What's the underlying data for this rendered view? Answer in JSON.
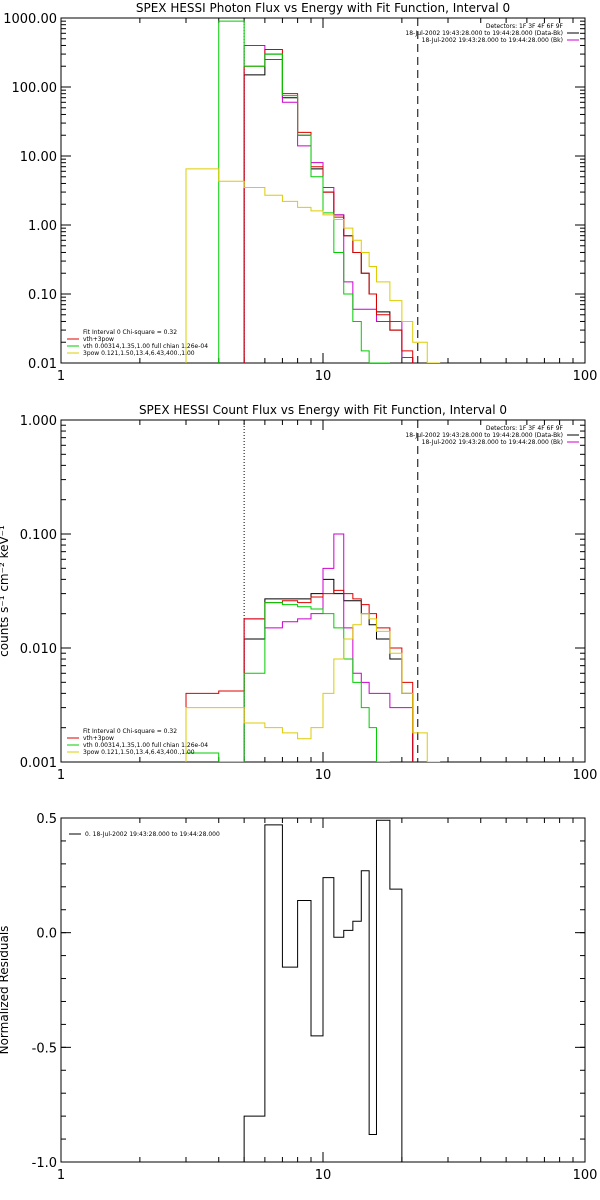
{
  "chart_data": [
    {
      "type": "line",
      "title": "SPEX HESSI Photon Flux vs Energy with Fit Function, Interval 0",
      "ylabel": "",
      "xlabel": "",
      "x_scale": "log",
      "y_scale": "log",
      "xlim": [
        1,
        100
      ],
      "ylim": [
        0.01,
        1000
      ],
      "x_tick_labels": [
        "1",
        "10",
        "100"
      ],
      "y_tick_labels": [
        "0.01",
        "0.10",
        "1.00",
        "10.00",
        "100.00",
        "1000.00"
      ],
      "vlines": [
        {
          "x": 5.0,
          "style": "dotted"
        },
        {
          "x": 23.0,
          "style": "dashed"
        }
      ],
      "legend_tr": [
        "Detectors: 1F 3F 4F 6F 9F",
        "18-Jul-2002 19:43:28.000 to 19:44:28.000 (Data-Bk)",
        "18-Jul-2002 19:43:28.000 to 19:44:28.000 (Bk)"
      ],
      "legend_tr_colors": [
        "",
        "#000000",
        "#cc00cc"
      ],
      "legend_bl": [
        "Fit Interval 0   Chi-square = 0.32",
        "vth+3pow",
        "vth 0.00314,1.35,1.00  full chian 1.26e-04",
        "3pow 0.121,1.50,13.4,6.43,400.,1.00"
      ],
      "legend_bl_colors": [
        "",
        "#dd0000",
        "#00cc00",
        "#ddcc00"
      ],
      "bin_edges": [
        3,
        4,
        5,
        6,
        7,
        8,
        9,
        10,
        11,
        12,
        13,
        14,
        15,
        16,
        18,
        20,
        22,
        25,
        28
      ],
      "series": [
        {
          "color": "#000000",
          "values": [
            null,
            null,
            150,
            300,
            70,
            20,
            6.5,
            3.0,
            1.4,
            0.7,
            0.4,
            0.2,
            0.1,
            0.055,
            0.03,
            0.012,
            null,
            null
          ]
        },
        {
          "color": "#cc00cc",
          "values": [
            null,
            null,
            400,
            250,
            60,
            14,
            8,
            3.5,
            1.4,
            0.15,
            0.06,
            0.06,
            0.06,
            0.04,
            0.04,
            0.012,
            null,
            null
          ]
        },
        {
          "color": "#dd0000",
          "values": [
            null,
            null,
            200,
            350,
            80,
            22,
            7,
            3,
            1.3,
            0.7,
            0.4,
            0.2,
            0.1,
            0.05,
            0.03,
            0.015,
            null,
            null
          ]
        },
        {
          "color": "#00cc00",
          "values": [
            null,
            900,
            200,
            300,
            75,
            20,
            5,
            1.5,
            0.4,
            0.1,
            0.04,
            0.015,
            0.01,
            0.01,
            null,
            null,
            null,
            null
          ]
        },
        {
          "color": "#ddcc00",
          "values": [
            6.5,
            4.3,
            3.5,
            2.7,
            2.2,
            1.8,
            1.6,
            1.4,
            1.2,
            0.9,
            0.6,
            0.4,
            0.25,
            0.15,
            0.08,
            0.04,
            0.02,
            0.01
          ]
        }
      ]
    },
    {
      "type": "line",
      "title": "SPEX HESSI Count Flux vs Energy with Fit Function, Interval 0",
      "ylabel": "counts s⁻¹ cm⁻² keV⁻¹",
      "xlabel": "",
      "x_scale": "log",
      "y_scale": "log",
      "xlim": [
        1,
        100
      ],
      "ylim": [
        0.001,
        1.0
      ],
      "x_tick_labels": [
        "1",
        "10",
        "100"
      ],
      "y_tick_labels": [
        "0.001",
        "0.010",
        "0.100",
        "1.000"
      ],
      "vlines": [
        {
          "x": 5.0,
          "style": "dotted"
        },
        {
          "x": 23.0,
          "style": "dashed"
        }
      ],
      "legend_tr": [
        "Detectors: 1F 3F 4F 6F 9F",
        "18-Jul-2002 19:43:28.000 to 19:44:28.000 (Data-Bk)",
        "18-Jul-2002 19:43:28.000 to 19:44:28.000 (Bk)"
      ],
      "legend_tr_colors": [
        "",
        "#000000",
        "#cc00cc"
      ],
      "legend_bl": [
        "Fit Interval 0   Chi-square = 0.32",
        "vth+3pow",
        "vth 0.00314,1.35,1.00  full chian 1.26e-04",
        "3pow 0.121,1.50,13.4,6.43,400.,1.00"
      ],
      "legend_bl_colors": [
        "",
        "#dd0000",
        "#00cc00",
        "#ddcc00"
      ],
      "bin_edges": [
        3,
        4,
        5,
        6,
        7,
        8,
        9,
        10,
        11,
        12,
        13,
        14,
        15,
        16,
        18,
        20,
        22,
        25,
        28
      ],
      "series": [
        {
          "color": "#000000",
          "values": [
            null,
            null,
            0.012,
            0.027,
            0.027,
            0.027,
            0.03,
            0.04,
            0.03,
            0.026,
            0.026,
            0.02,
            0.016,
            0.012,
            0.008,
            0.004,
            null,
            null
          ]
        },
        {
          "color": "#cc00cc",
          "values": [
            null,
            null,
            0.018,
            0.015,
            0.017,
            0.018,
            0.02,
            0.05,
            0.1,
            0.015,
            0.006,
            0.005,
            0.004,
            0.004,
            0.003,
            0.003,
            null,
            null
          ]
        },
        {
          "color": "#dd0000",
          "values": [
            0.004,
            0.0042,
            0.018,
            0.025,
            0.026,
            0.025,
            0.028,
            0.03,
            0.032,
            0.03,
            0.027,
            0.024,
            0.02,
            0.015,
            0.01,
            0.005,
            null,
            null
          ]
        },
        {
          "color": "#00cc00",
          "values": [
            0.0012,
            0.001,
            0.006,
            0.025,
            0.024,
            0.023,
            0.022,
            0.02,
            0.015,
            0.008,
            0.005,
            0.003,
            0.002,
            0.001,
            null,
            null,
            null,
            null
          ]
        },
        {
          "color": "#ddcc00",
          "values": [
            0.003,
            0.003,
            0.0022,
            0.002,
            0.0018,
            0.0016,
            0.002,
            0.004,
            0.008,
            0.012,
            0.016,
            0.02,
            0.018,
            0.014,
            0.009,
            0.004,
            0.0018,
            0.001
          ]
        }
      ]
    },
    {
      "type": "line",
      "title": "",
      "ylabel": "Normalized Residuals",
      "xlabel": "",
      "x_scale": "log",
      "y_scale": "linear",
      "xlim": [
        1,
        100
      ],
      "ylim": [
        -1.0,
        0.5
      ],
      "x_tick_labels": [
        "1",
        "10",
        "100"
      ],
      "y_tick_labels": [
        "-1.0",
        "-0.5",
        "0.0",
        "0.5"
      ],
      "y_ticks": [
        -1.0,
        -0.5,
        0.0,
        0.5
      ],
      "legend_tl": [
        "0. 18-Jul-2002 19:43:28.000 to 19:44:28.000"
      ],
      "legend_tl_colors": [
        "#000000"
      ],
      "bin_edges": [
        5,
        6,
        7,
        8,
        9,
        10,
        11,
        12,
        13,
        14,
        15,
        16,
        18,
        20,
        22
      ],
      "series": [
        {
          "color": "#000000",
          "values": [
            -0.8,
            0.47,
            -0.15,
            0.14,
            -0.45,
            0.24,
            -0.02,
            0.01,
            0.05,
            0.27,
            -0.88,
            0.49,
            0.19,
            -1.0
          ]
        }
      ]
    }
  ]
}
